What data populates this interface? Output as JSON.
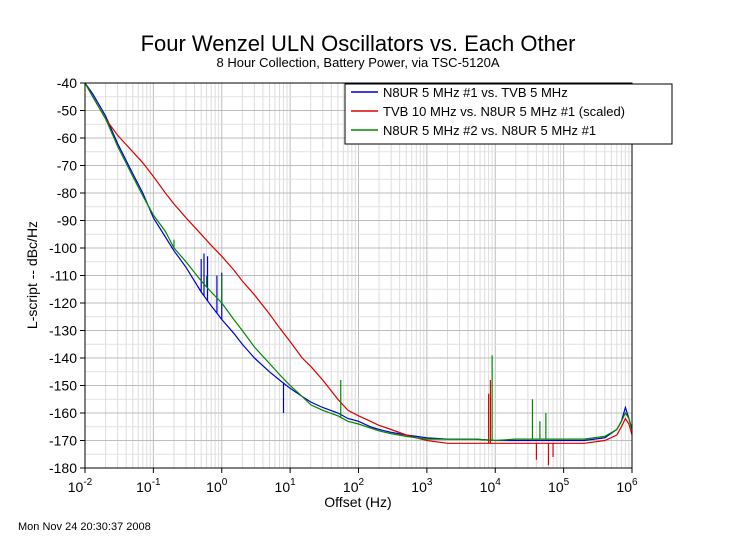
{
  "chart_data": {
    "type": "line",
    "title": "Four Wenzel ULN Oscillators vs. Each Other",
    "subtitle": "8 Hour Collection, Battery Power, via TSC-5120A",
    "xlabel": "Offset (Hz)",
    "ylabel": "L-script -- dBc/Hz",
    "xscale": "log",
    "xlim": [
      0.01,
      1000000
    ],
    "ylim": [
      -180,
      -40
    ],
    "x_ticks": [
      {
        "value": 0.01,
        "base": "10",
        "exp": "-2"
      },
      {
        "value": 0.1,
        "base": "10",
        "exp": "-1"
      },
      {
        "value": 1,
        "base": "10",
        "exp": "0"
      },
      {
        "value": 10,
        "base": "10",
        "exp": "1"
      },
      {
        "value": 100,
        "base": "10",
        "exp": "2"
      },
      {
        "value": 1000,
        "base": "10",
        "exp": "3"
      },
      {
        "value": 10000,
        "base": "10",
        "exp": "4"
      },
      {
        "value": 100000,
        "base": "10",
        "exp": "5"
      },
      {
        "value": 1000000,
        "base": "10",
        "exp": "6"
      }
    ],
    "y_ticks": [
      "-40",
      "-50",
      "-60",
      "-70",
      "-80",
      "-90",
      "-100",
      "-110",
      "-120",
      "-130",
      "-140",
      "-150",
      "-160",
      "-170",
      "-180"
    ],
    "grid": true,
    "legend_position": "top-right",
    "series": [
      {
        "name": "N8UR 5 MHz #1 vs. TVB 5 MHz",
        "color": "#0000cc",
        "x": [
          0.01,
          0.013,
          0.02,
          0.03,
          0.05,
          0.07,
          0.1,
          0.15,
          0.2,
          0.3,
          0.5,
          0.7,
          1,
          1.5,
          2,
          3,
          5,
          7,
          10,
          15,
          20,
          30,
          50,
          70,
          100,
          150,
          200,
          300,
          500,
          700,
          1000,
          2000,
          5000,
          10000,
          20000,
          50000,
          100000,
          200000,
          400000,
          600000,
          700000,
          800000,
          900000,
          1000000
        ],
        "y": [
          -40,
          -44,
          -52,
          -62,
          -73,
          -80,
          -89,
          -96,
          -101,
          -107,
          -116,
          -121,
          -126,
          -131,
          -135,
          -140,
          -145,
          -148,
          -151,
          -154,
          -156,
          -158,
          -160,
          -162,
          -163,
          -165,
          -166,
          -167,
          -168,
          -168.5,
          -169,
          -169.5,
          -169.5,
          -170,
          -170,
          -170,
          -170,
          -170,
          -169,
          -166,
          -163,
          -158,
          -162,
          -166
        ],
        "spikes": [
          {
            "x": 0.5,
            "y": -104
          },
          {
            "x": 0.55,
            "y": -102
          },
          {
            "x": 0.62,
            "y": -103
          },
          {
            "x": 0.85,
            "y": -110
          },
          {
            "x": 1.0,
            "y": -109
          },
          {
            "x": 8,
            "y": -160
          }
        ]
      },
      {
        "name": "TVB 10 MHz vs. N8UR 5 MHz #1 (scaled)",
        "color": "#dd0000",
        "x": [
          0.01,
          0.013,
          0.02,
          0.03,
          0.05,
          0.07,
          0.1,
          0.15,
          0.2,
          0.3,
          0.5,
          0.7,
          1,
          1.5,
          2,
          3,
          5,
          7,
          10,
          15,
          20,
          30,
          50,
          70,
          100,
          150,
          200,
          300,
          500,
          700,
          1000,
          2000,
          5000,
          10000,
          20000,
          50000,
          100000,
          200000,
          400000,
          600000,
          700000,
          800000,
          900000,
          1000000
        ],
        "y": [
          -40,
          -45,
          -53,
          -59,
          -65,
          -69,
          -74,
          -80,
          -84,
          -89,
          -95,
          -99,
          -103,
          -108,
          -112,
          -117,
          -124,
          -129,
          -134,
          -140,
          -143,
          -148,
          -155,
          -159,
          -161,
          -163,
          -164.5,
          -166,
          -168,
          -169,
          -170,
          -171,
          -171,
          -171,
          -171,
          -171,
          -171,
          -171,
          -170,
          -168,
          -165,
          -162,
          -164,
          -168
        ],
        "spikes": [
          {
            "x": 8000,
            "y": -153
          },
          {
            "x": 8500,
            "y": -148
          },
          {
            "x": 40000,
            "y": -177
          },
          {
            "x": 60000,
            "y": -179
          },
          {
            "x": 70000,
            "y": -176
          }
        ]
      },
      {
        "name": "N8UR 5 MHz #2 vs. N8UR 5 MHz #1",
        "color": "#008800",
        "x": [
          0.01,
          0.013,
          0.02,
          0.03,
          0.05,
          0.07,
          0.1,
          0.15,
          0.2,
          0.3,
          0.5,
          0.7,
          1,
          1.5,
          2,
          3,
          5,
          7,
          10,
          15,
          20,
          30,
          50,
          70,
          100,
          150,
          200,
          300,
          500,
          700,
          1000,
          2000,
          5000,
          10000,
          20000,
          50000,
          100000,
          200000,
          400000,
          600000,
          700000,
          800000,
          900000,
          1000000
        ],
        "y": [
          -40,
          -45,
          -53,
          -63,
          -74,
          -81,
          -88,
          -94,
          -100,
          -105,
          -112,
          -116,
          -120,
          -126,
          -130,
          -136,
          -142,
          -146,
          -150,
          -154,
          -157,
          -159,
          -161,
          -163,
          -164,
          -165.5,
          -166.5,
          -167.5,
          -168.5,
          -169,
          -169.5,
          -169.5,
          -169.5,
          -170,
          -169.5,
          -169.5,
          -169.5,
          -169.5,
          -168.5,
          -166,
          -163,
          -160,
          -162,
          -166
        ],
        "spikes": [
          {
            "x": 0.2,
            "y": -97
          },
          {
            "x": 0.6,
            "y": -110
          },
          {
            "x": 1.0,
            "y": -110
          },
          {
            "x": 55,
            "y": -148
          },
          {
            "x": 9000,
            "y": -139
          },
          {
            "x": 35000,
            "y": -155
          },
          {
            "x": 45000,
            "y": -163
          },
          {
            "x": 55000,
            "y": -160
          }
        ]
      }
    ]
  },
  "timestamp": "Mon Nov 24 20:30:37 2008"
}
